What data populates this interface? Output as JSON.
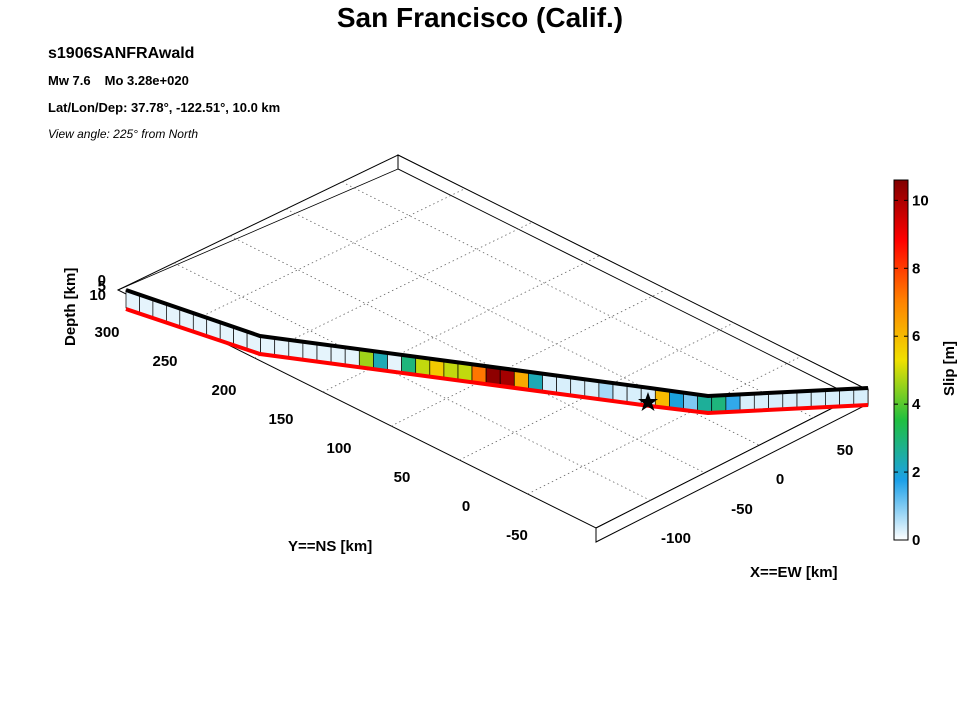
{
  "title": "San Francisco (Calif.)",
  "header": {
    "event_id": "s1906SANFRAwald",
    "mw": "Mw 7.6",
    "mo": "Mo 3.28e+020",
    "location": "Lat/Lon/Dep: 37.78°, -122.51°, 10.0 km",
    "view": "View angle: 225° from North"
  },
  "chart_data": {
    "type": "heatmap",
    "description_kind": "3d-fault-slip-model",
    "xlabel": "X==EW [km]",
    "ylabel": "Y==NS [km]",
    "zlabel": "Depth [km]",
    "x_ticks": [
      "-100",
      "-50",
      "0",
      "50"
    ],
    "y_ticks": [
      "-50",
      "0",
      "50",
      "100",
      "150",
      "200",
      "250",
      "300"
    ],
    "z_ticks": [
      "0",
      "5",
      "10"
    ],
    "colorbar": {
      "label": "Slip [m]",
      "ticks": [
        "0",
        "2",
        "4",
        "6",
        "8",
        "10"
      ],
      "range": [
        0,
        10.6
      ],
      "colors": [
        "#ffffff",
        "#1ba0e8",
        "#20c040",
        "#f0e000",
        "#ff8000",
        "#ff0000",
        "#800000"
      ]
    },
    "fault_trace_color": "#ff0000",
    "fault_top_color": "#000000",
    "hypocenter_marker": "star",
    "subfault_slip_m": [
      0.2,
      0.2,
      0.2,
      0.2,
      0.2,
      0.2,
      0.2,
      0.2,
      0.2,
      0.2,
      0.2,
      0.2,
      0.2,
      0.2,
      0.2,
      0.2,
      0.2,
      4.6,
      2.3,
      0.2,
      2.9,
      4.9,
      5.7,
      4.9,
      4.9,
      7.2,
      10.4,
      10.1,
      6.3,
      2.3,
      0.3,
      0.3,
      0.3,
      0.3,
      0.7,
      0.3,
      0.3,
      0.3,
      6.0,
      1.9,
      1.0,
      2.6,
      2.9,
      1.6,
      0.3,
      0.3,
      0.3,
      0.3,
      0.3,
      0.3,
      0.3,
      0.3,
      0.3
    ]
  }
}
